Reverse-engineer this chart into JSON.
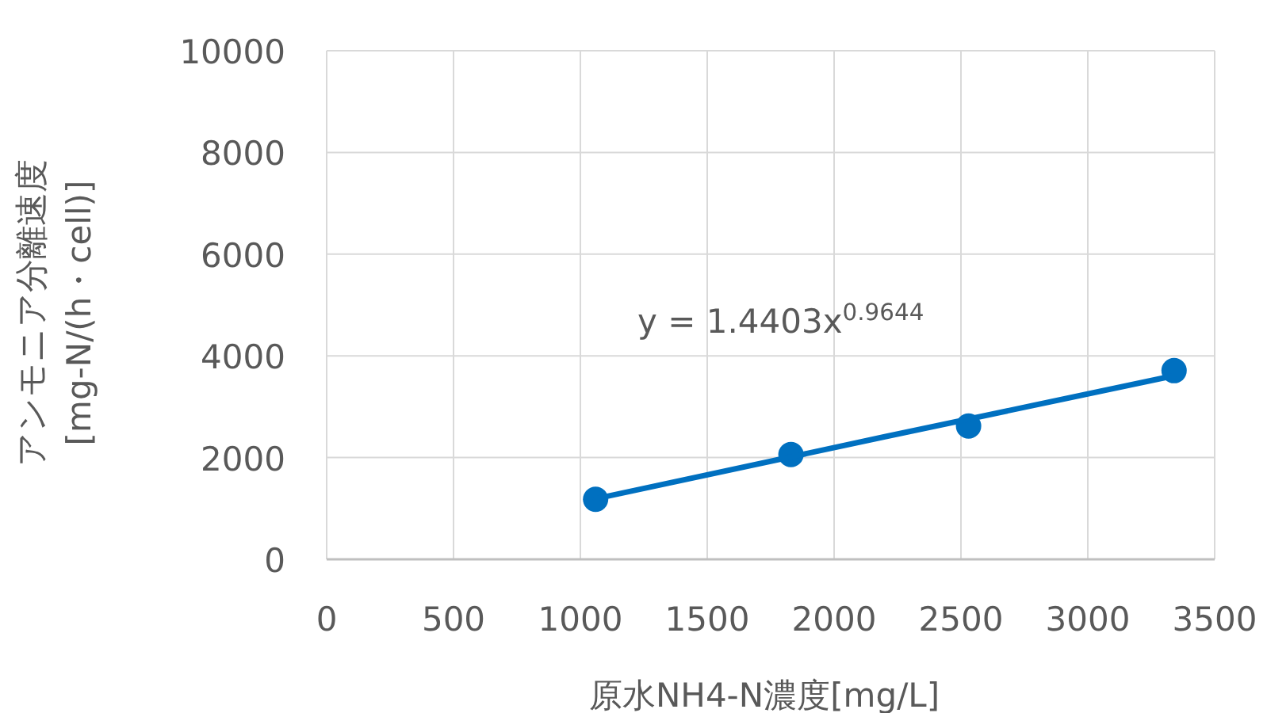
{
  "chart_data": {
    "type": "scatter",
    "xlabel": "原水NH4-N濃度[mg/L]",
    "ylabel": "アンモニア分離速度\n[mg-N/(h・cell)]",
    "series": [
      {
        "color": "#0070c0",
        "marker": "circle",
        "x": [
          1060,
          1830,
          2530,
          3340
        ],
        "values": [
          1180,
          2060,
          2620,
          3710
        ]
      },
      {
        "type": "line",
        "color": "#0070c0",
        "marker": "none",
        "x": [
          1060,
          2200,
          3340
        ],
        "values": [
          1190,
          2410,
          3610
        ]
      }
    ],
    "annotations": [
      "y = 1.4403x$^{0.9644}$"
    ],
    "xlim": [
      0,
      3500
    ],
    "xticks": [
      0,
      500,
      1000,
      1500,
      2000,
      2500,
      3000,
      3500
    ],
    "ylim": [
      0,
      10000
    ],
    "yticks": [
      0,
      2000,
      4000,
      6000,
      8000,
      10000
    ],
    "grid": true
  }
}
